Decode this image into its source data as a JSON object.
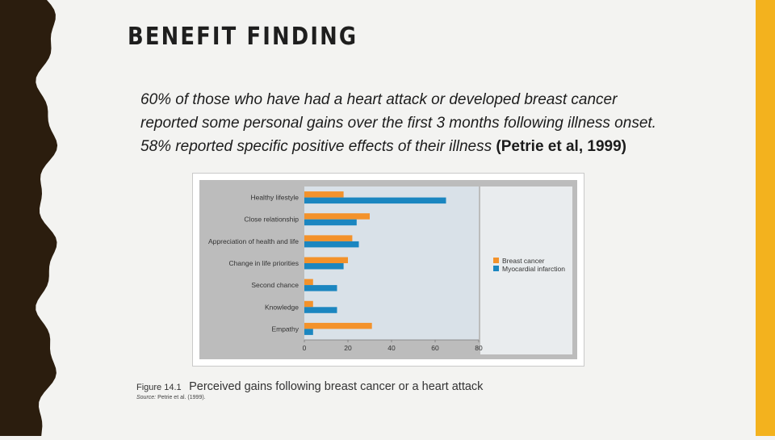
{
  "slide": {
    "title": "BENEFIT FINDING",
    "body_italic": "60% of those who have had a heart attack or developed breast cancer reported some personal gains over the first 3 months following illness onset. 58% reported specific positive effects of their illness",
    "citation": "(Petrie et al, 1999)",
    "colors": {
      "left_band": "#2b1d0e",
      "right_band": "#f3b21e",
      "background": "#f3f3f1"
    }
  },
  "figure": {
    "label": "Figure 14.1",
    "caption": "Perceived gains following breast cancer or a heart attack",
    "source_label": "Source:",
    "source_text": "Petrie et al. (1999)."
  },
  "chart_data": {
    "type": "bar",
    "orientation": "horizontal",
    "categories": [
      "Healthy lifestyle",
      "Close relationship",
      "Appreciation of health and life",
      "Change in life priorities",
      "Second chance",
      "Knowledge",
      "Empathy"
    ],
    "series": [
      {
        "name": "Breast cancer",
        "color": "#f3922b",
        "values": [
          18,
          30,
          22,
          20,
          4,
          4,
          31
        ]
      },
      {
        "name": "Myocardial infarction",
        "color": "#1b86c0",
        "values": [
          65,
          24,
          25,
          18,
          15,
          15,
          4
        ]
      }
    ],
    "xlim": [
      0,
      80
    ],
    "xticks": [
      0,
      20,
      40,
      60,
      80
    ],
    "legend_position": "right",
    "grid": false
  }
}
